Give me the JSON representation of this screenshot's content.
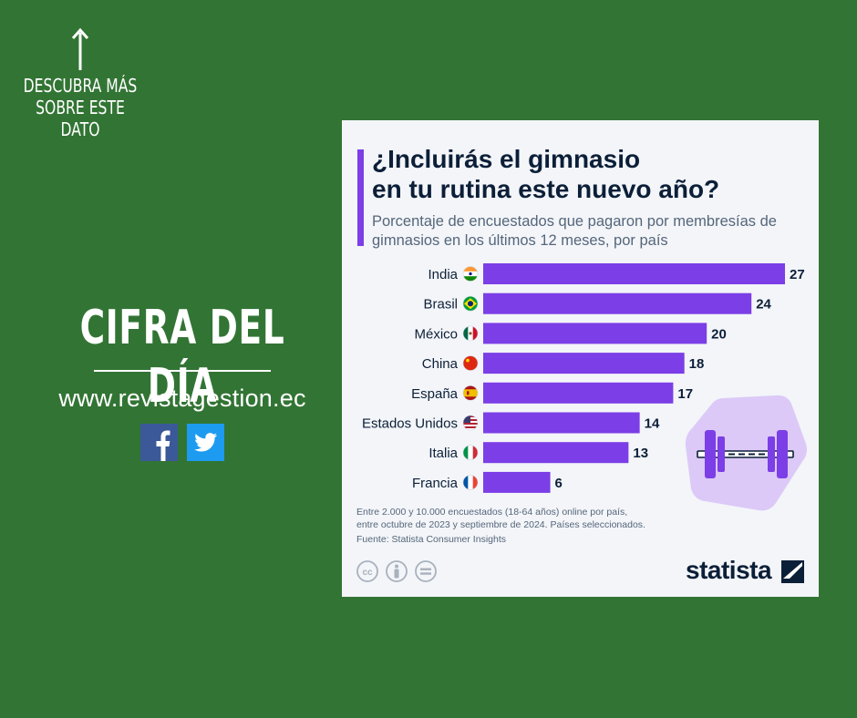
{
  "left_panel": {
    "discover_lines": [
      "DESCUBRA MÁS",
      "SOBRE ESTE",
      "DATO"
    ],
    "heading": "CIFRA DEL DÍA",
    "website": "www.revistagestion.ec",
    "facebook_icon": "facebook-icon",
    "twitter_icon": "twitter-icon"
  },
  "colors": {
    "background": "#327434",
    "card": "#f3f5f9",
    "bar": "#7c3ee6",
    "title": "#0c1f38",
    "muted": "#55667a"
  },
  "chart_data": {
    "type": "bar",
    "orientation": "horizontal",
    "title_lines": [
      "¿Incluirás el gimnasio",
      "en tu rutina este nuevo año?"
    ],
    "subtitle": "Porcentaje de encuestados que pagaron por membresías de gimnasios en los últimos 12 meses, por país",
    "categories": [
      "India",
      "Brasil",
      "México",
      "China",
      "España",
      "Estados Unidos",
      "Italia",
      "Francia"
    ],
    "values": [
      27,
      24,
      20,
      18,
      17,
      14,
      13,
      6
    ],
    "flags": [
      "india-flag-icon",
      "brazil-flag-icon",
      "mexico-flag-icon",
      "china-flag-icon",
      "spain-flag-icon",
      "usa-flag-icon",
      "italy-flag-icon",
      "france-flag-icon"
    ],
    "xlim": [
      0,
      27
    ],
    "unit": "%",
    "note_lines": [
      "Entre 2.000 y 10.000 encuestados (18-64 años) online por país,",
      "entre octubre de 2023 y septiembre de 2024. Países seleccionados."
    ],
    "source": "Fuente: Statista Consumer Insights"
  },
  "footer": {
    "license_icons": [
      "cc-icon",
      "attribution-icon",
      "no-derivatives-icon"
    ],
    "brand": "statista"
  }
}
